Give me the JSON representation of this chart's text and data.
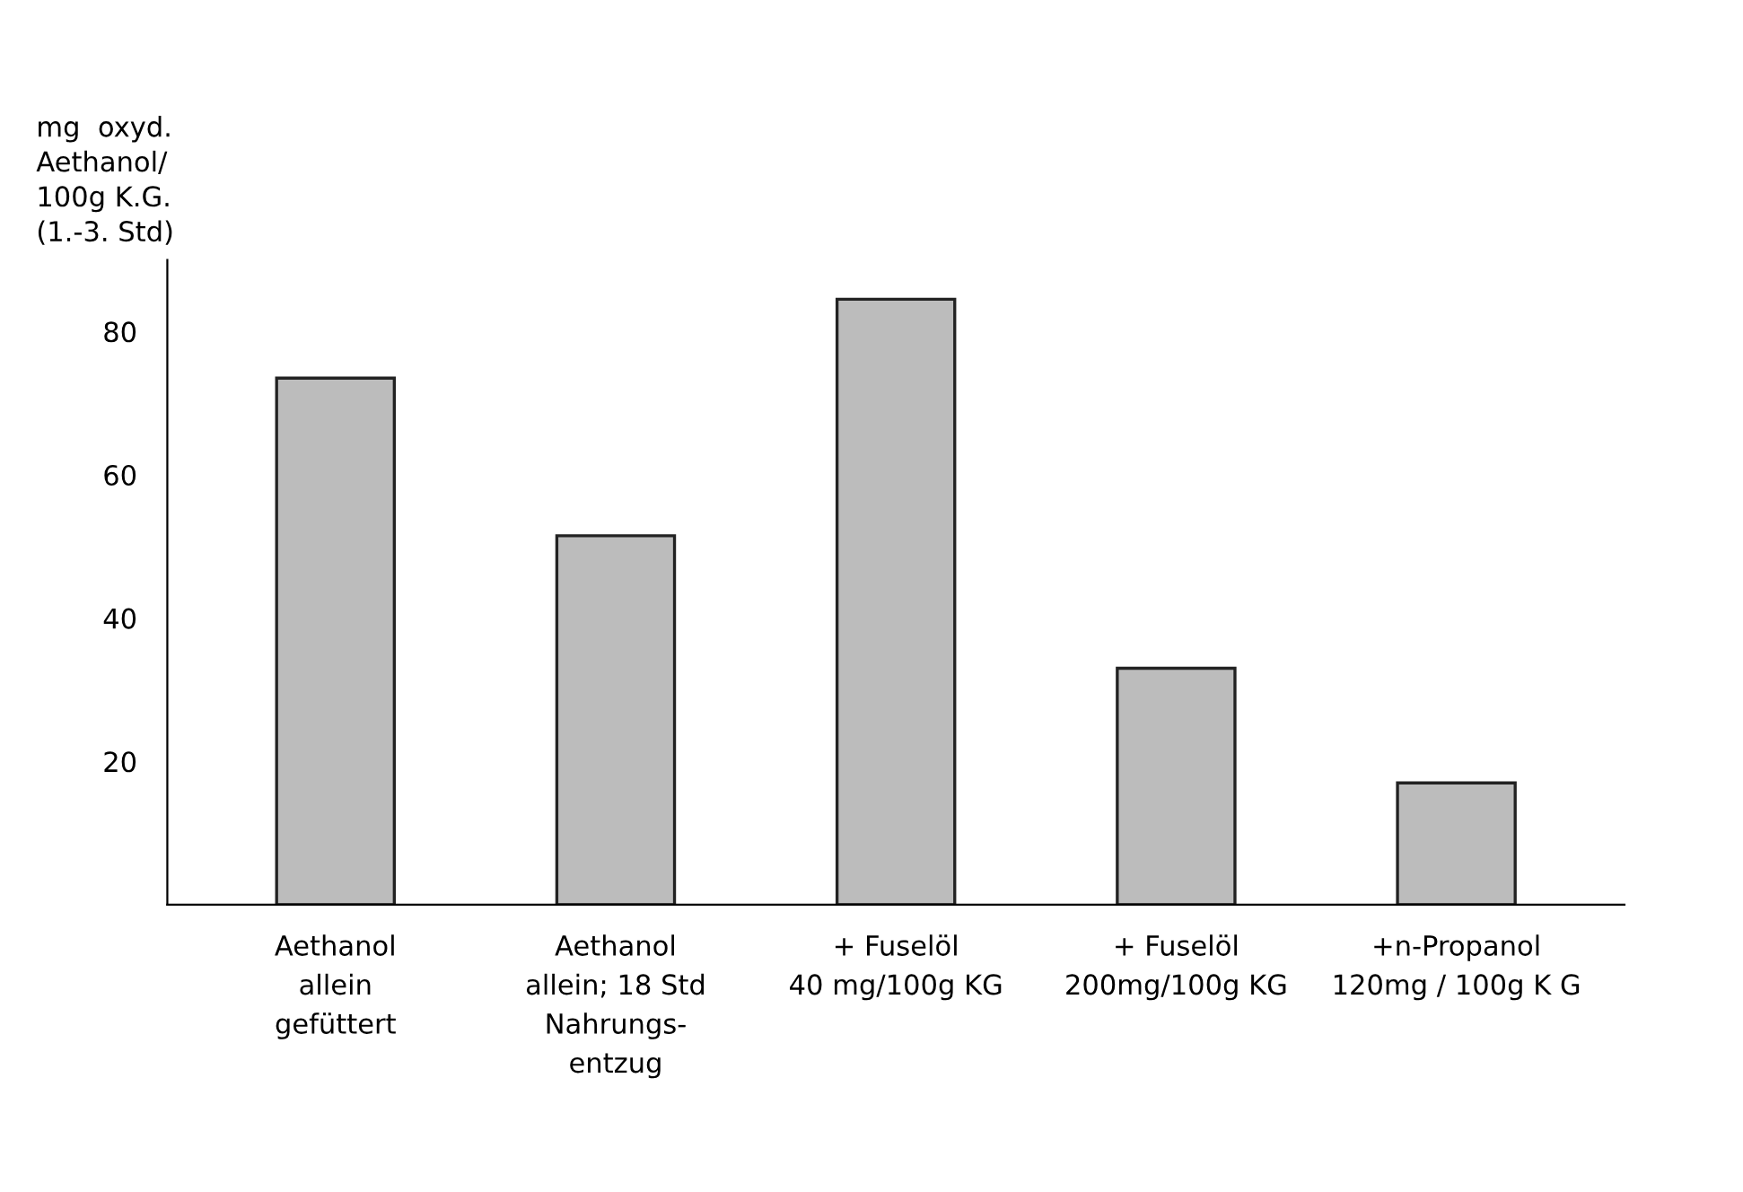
{
  "chart_data": {
    "type": "bar",
    "ylabel": "mg  oxyd.\nAethanol/\n100g K.G.\n(1.-3. Std)",
    "categories": [
      "Aethanol\nallein\ngefüttert",
      "Aethanol\nallein; 18 Std\nNahrungs-\nentzug",
      "+ Fuselöl\n40 mg/100g KG",
      "+ Fuselöl\n200mg/100g KG",
      "+n-Propanol\n120mg / 100g K G"
    ],
    "values": [
      73.5,
      51.5,
      84.5,
      33,
      17
    ],
    "color": "#bcbcbc",
    "ylim": [
      0,
      90
    ],
    "yticks": [
      20,
      40,
      60,
      80
    ],
    "grid": false
  }
}
